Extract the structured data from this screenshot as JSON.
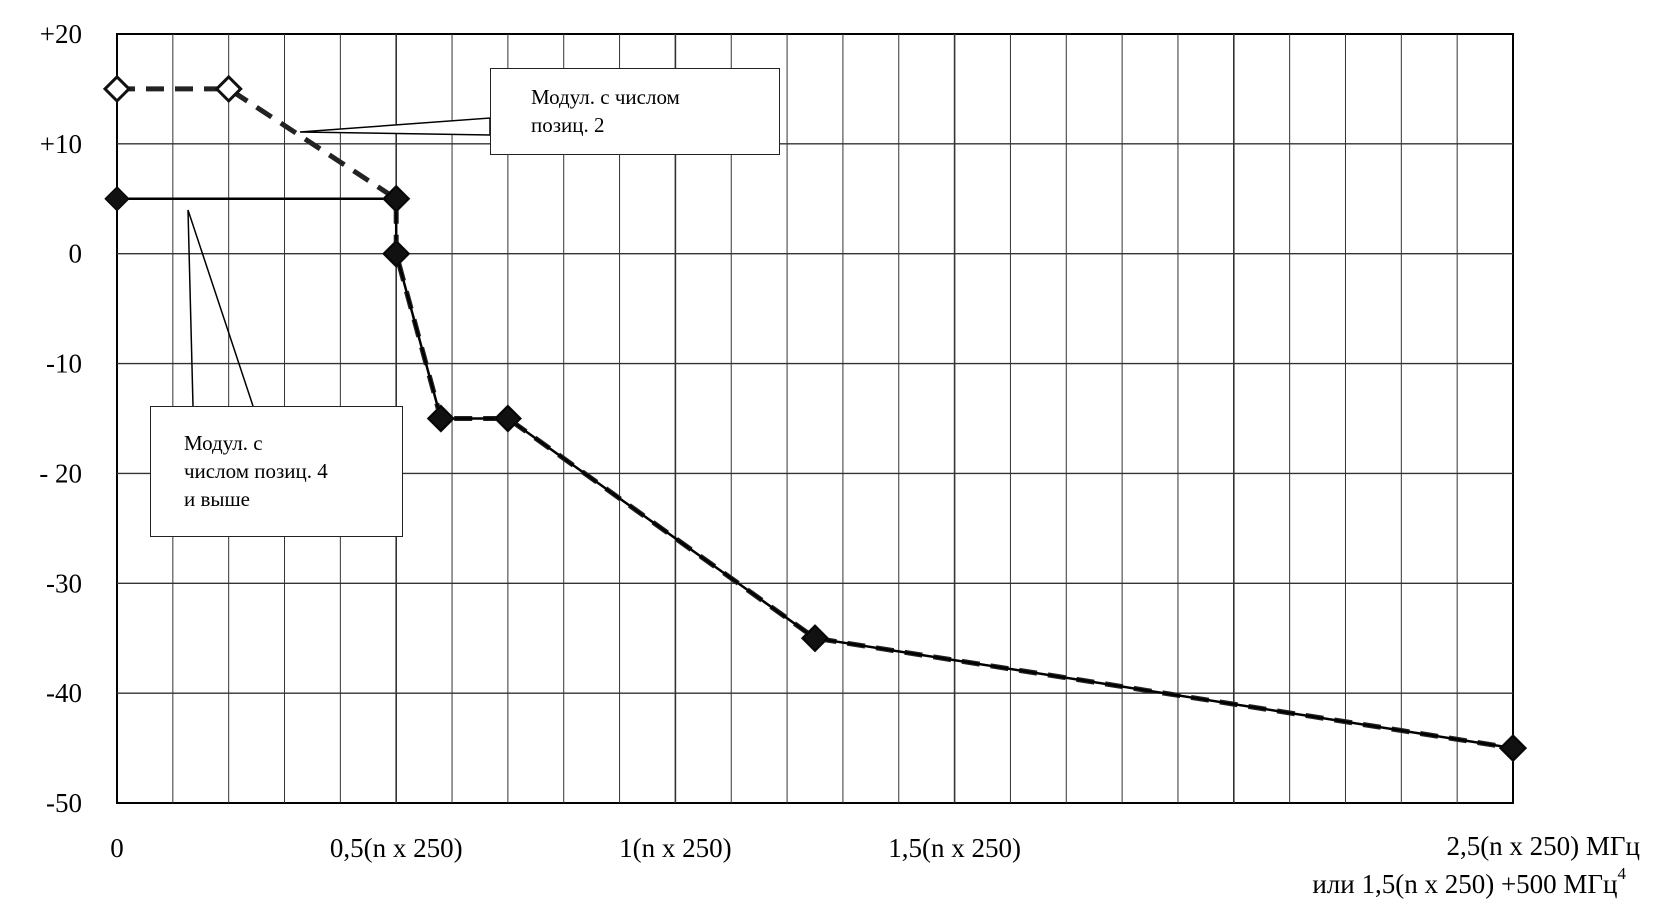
{
  "chart_data": {
    "type": "line",
    "title": "",
    "ylabel": "",
    "xlabel_lines": [
      "2,5(n x 250) МГц",
      "или 1,5(n x 250) +500 МГц"
    ],
    "xlabel_superscript": "4",
    "xlim": [
      0,
      2.5
    ],
    "ylim": [
      -50,
      20
    ],
    "y_ticks": [
      {
        "value": 20,
        "label": "+20"
      },
      {
        "value": 10,
        "label": "+10"
      },
      {
        "value": 0,
        "label": "0"
      },
      {
        "value": -10,
        "label": "-10"
      },
      {
        "value": -20,
        "label": "- 20"
      },
      {
        "value": -30,
        "label": "-30"
      },
      {
        "value": -40,
        "label": "-40"
      },
      {
        "value": -50,
        "label": "-50"
      }
    ],
    "x_ticks": [
      {
        "value": 0,
        "label": "0"
      },
      {
        "value": 0.5,
        "label": "0,5(n x 250)"
      },
      {
        "value": 1,
        "label": "1(n x 250)"
      },
      {
        "value": 1.5,
        "label": "1,5(n x 250)"
      }
    ],
    "grid": true,
    "legend": "none",
    "series": [
      {
        "name": "Модул. с числом позиц. 2",
        "style": "dashed",
        "color": "#222222",
        "points": [
          [
            0,
            15
          ],
          [
            0.2,
            15
          ],
          [
            0.5,
            5
          ],
          [
            0.5,
            0
          ],
          [
            0.58,
            -15
          ],
          [
            0.7,
            -15
          ],
          [
            1.25,
            -35
          ],
          [
            2.5,
            -45
          ]
        ]
      },
      {
        "name": "Модул. с числом позиц. 4 и выше",
        "style": "solid",
        "color": "#000000",
        "points": [
          [
            0,
            5
          ],
          [
            0.5,
            5
          ],
          [
            0.5,
            0
          ],
          [
            0.58,
            -15
          ],
          [
            0.7,
            -15
          ],
          [
            1.25,
            -35
          ],
          [
            2.5,
            -45
          ]
        ]
      }
    ],
    "annotations": [
      {
        "id": "callout-2",
        "lines": [
          "Модул. с числом",
          "позиц. 2"
        ],
        "series": 0
      },
      {
        "id": "callout-4",
        "lines": [
          "Модул. с",
          "числом позиц. 4",
          "и  выше"
        ],
        "series": 1
      }
    ]
  }
}
